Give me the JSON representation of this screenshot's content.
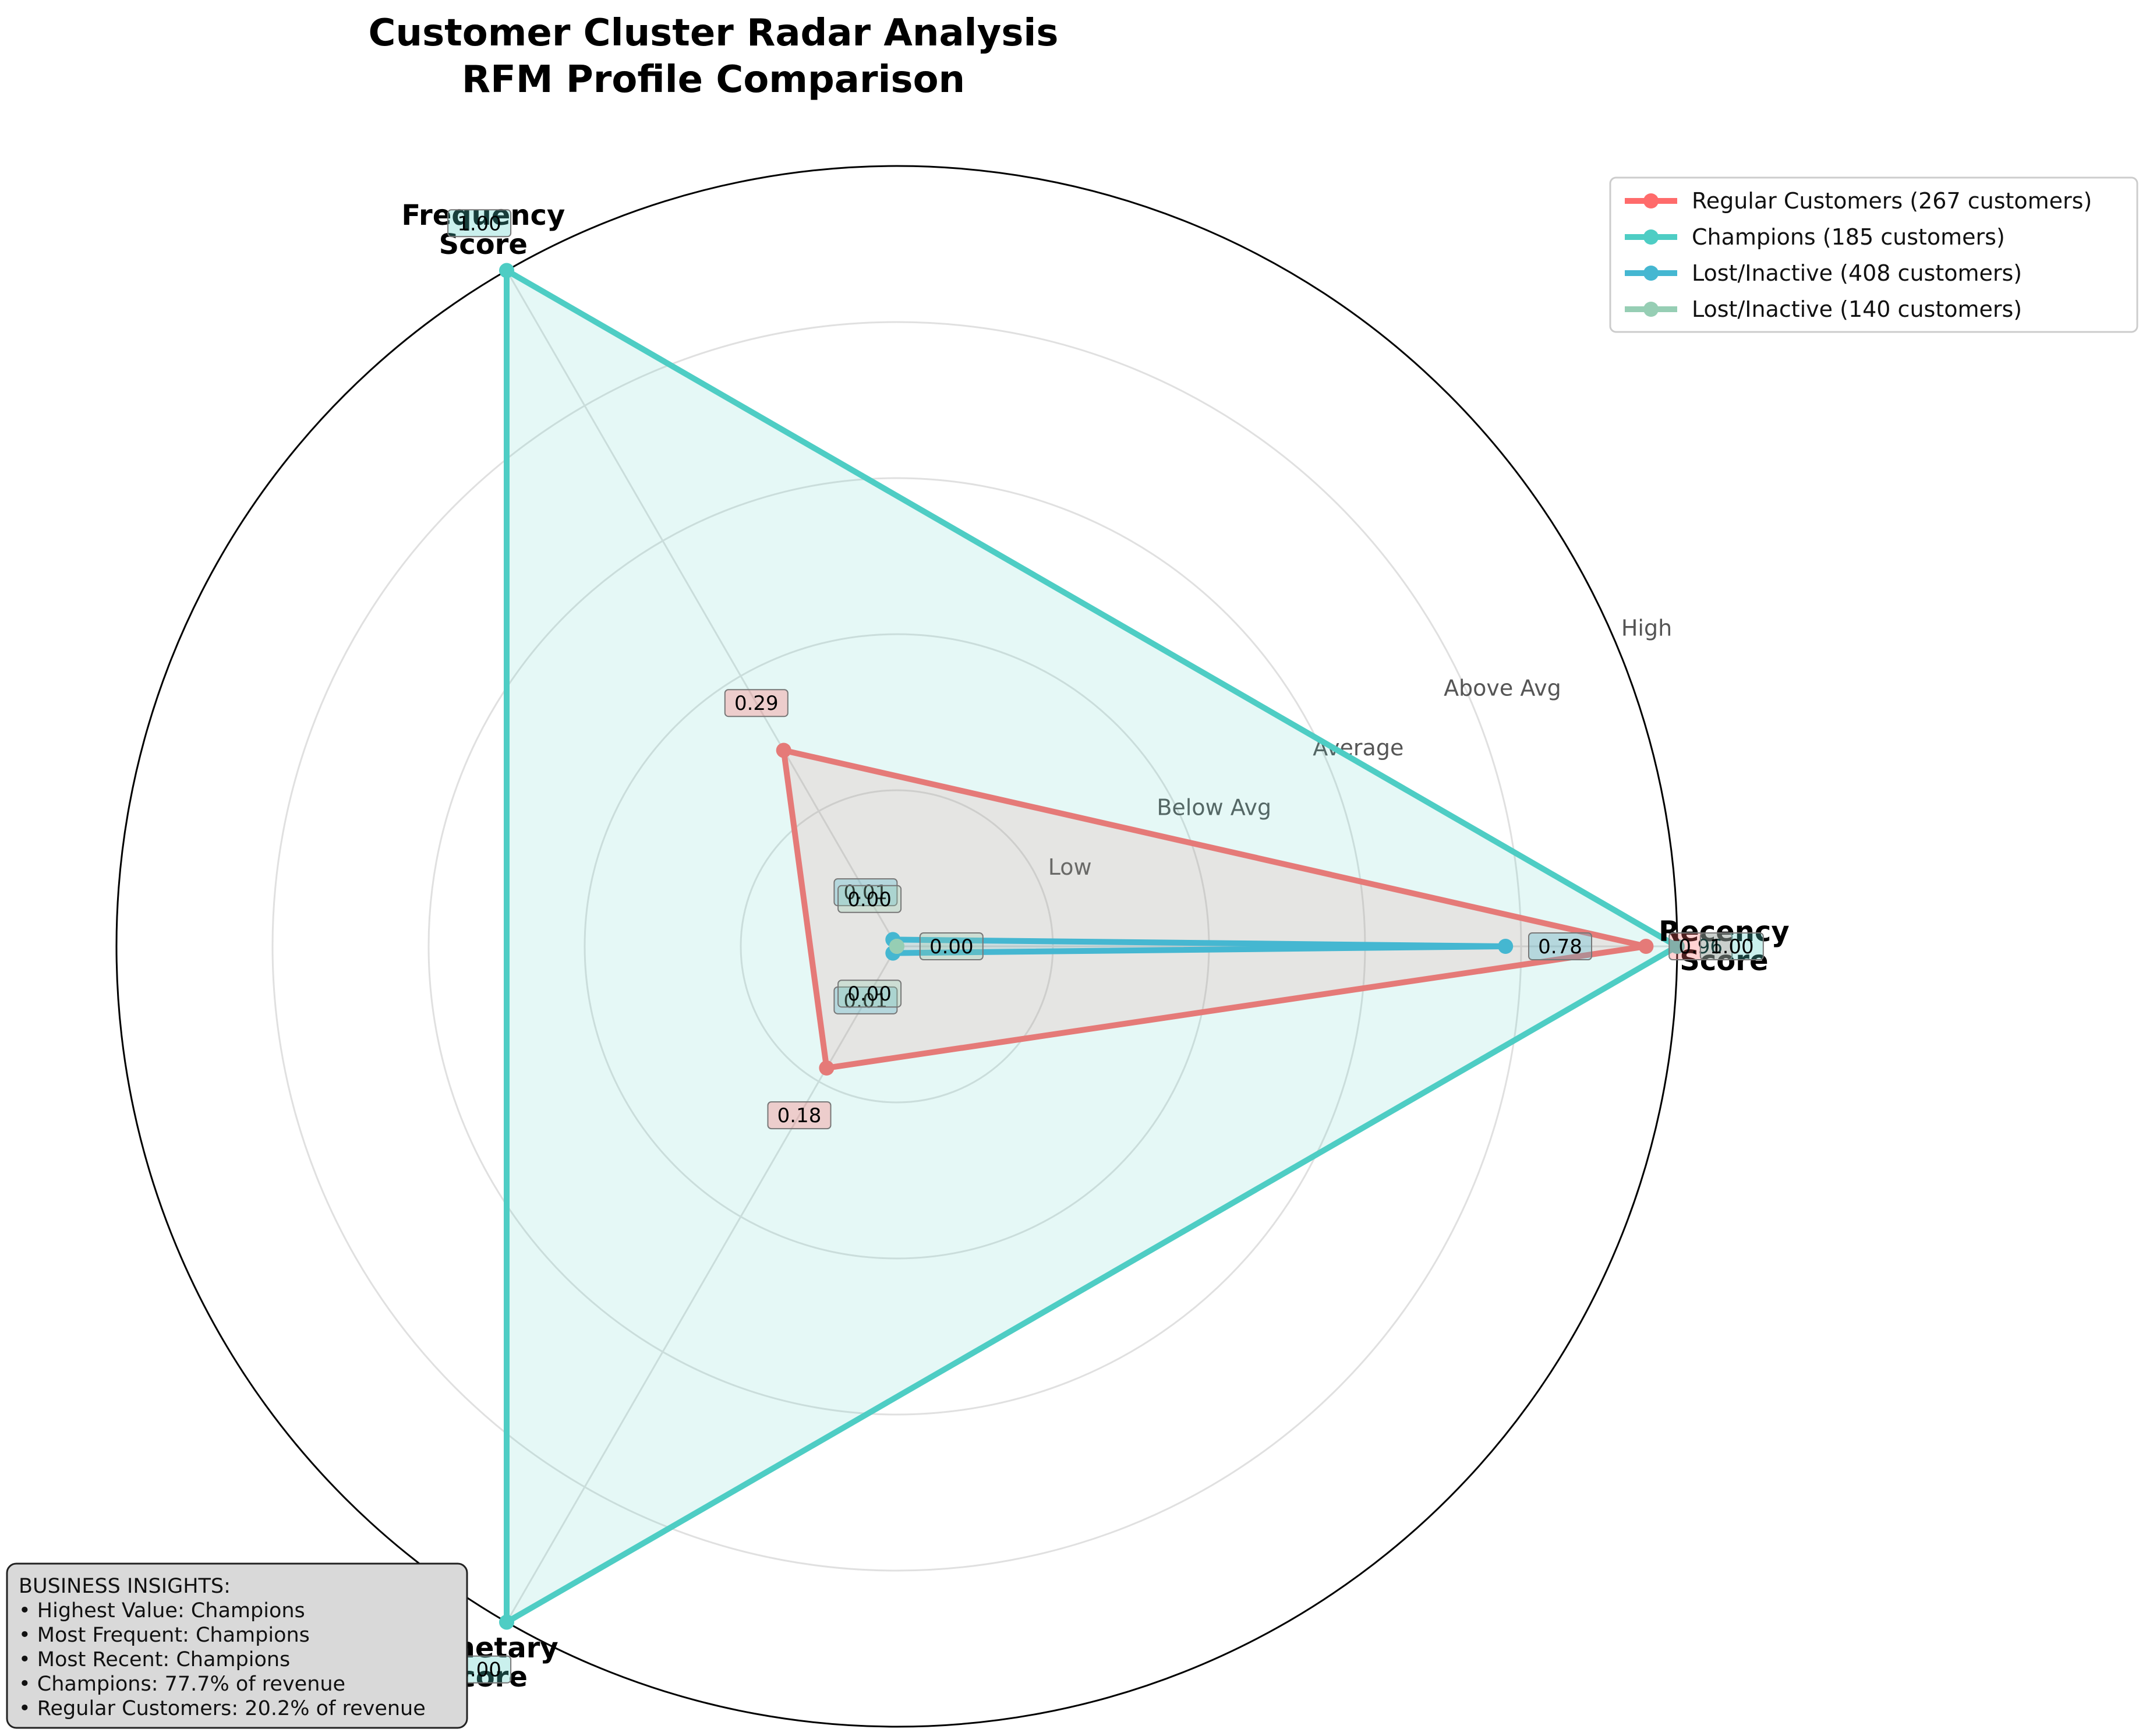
{
  "chart_data": {
    "type": "radar",
    "title": "Customer Cluster Radar Analysis",
    "subtitle": "RFM Profile Comparison",
    "axes": [
      "Recency\nScore",
      "Frequency\nScore",
      "Monetary\nScore"
    ],
    "ylim": [
      0,
      1
    ],
    "ring_labels": [
      "Low",
      "Below Avg",
      "Average",
      "Above Avg",
      "High"
    ],
    "grid": true,
    "legend_position": "top-right",
    "series": [
      {
        "name": "Regular Customers (267 customers)",
        "color": "#ff6b6b",
        "values": [
          0.96,
          0.29,
          0.18
        ],
        "labels": [
          "0.96",
          "0.29",
          "0.18"
        ]
      },
      {
        "name": "Champions (185 customers)",
        "color": "#4ecdc4",
        "values": [
          1.0,
          1.0,
          1.0
        ],
        "labels": [
          "1.00",
          "1.00",
          "1.00"
        ]
      },
      {
        "name": "Lost/Inactive (408 customers)",
        "color": "#45b7d1",
        "values": [
          0.78,
          0.01,
          0.01
        ],
        "labels": [
          "0.78",
          "0.01",
          "0.01"
        ]
      },
      {
        "name": "Lost/Inactive (140 customers)",
        "color": "#96ceb4",
        "values": [
          0.0,
          0.0,
          0.0
        ],
        "labels": [
          "0.00",
          "0.00",
          "0.00"
        ]
      }
    ]
  },
  "insights": {
    "lines": [
      "BUSINESS INSIGHTS:",
      "• Highest Value: Champions",
      "• Most Frequent: Champions",
      "• Most Recent: Champions",
      "• Champions: 77.7% of revenue",
      "• Regular Customers: 20.2% of revenue"
    ]
  }
}
